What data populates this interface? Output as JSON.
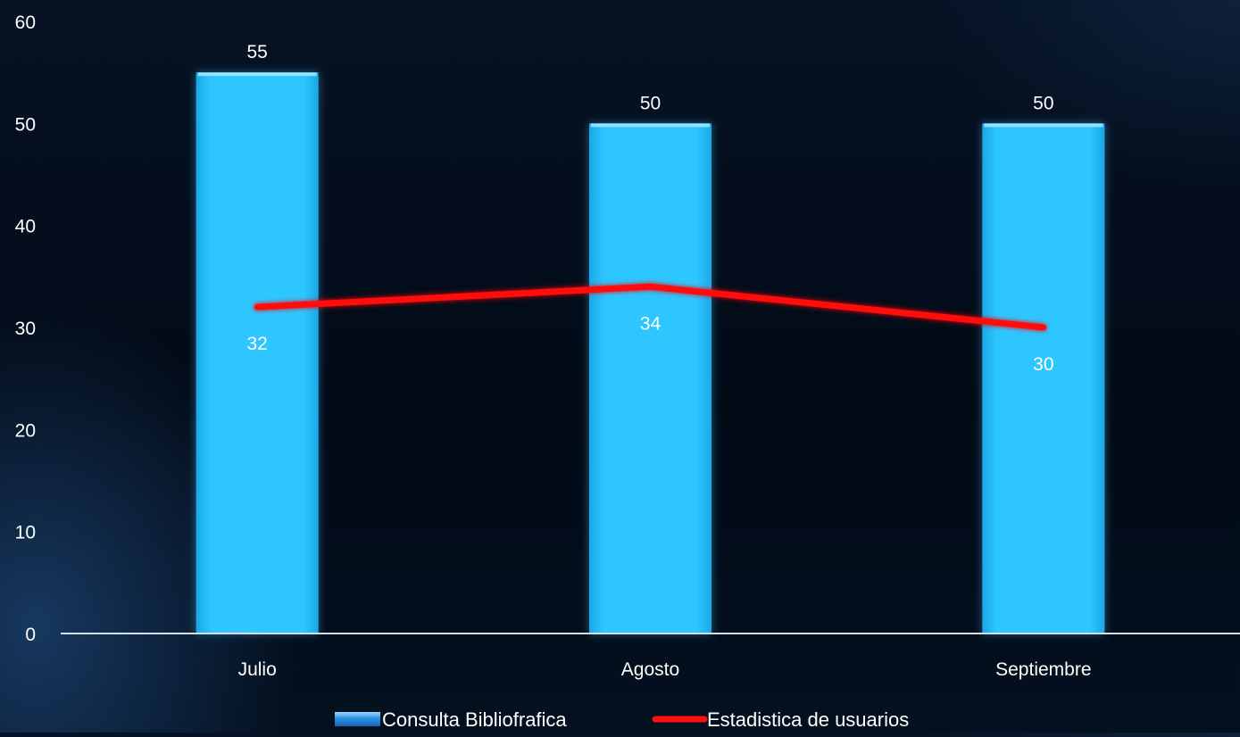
{
  "chart_data": {
    "type": "bar",
    "categories": [
      "Julio",
      "Agosto",
      "Septiembre"
    ],
    "series": [
      {
        "name": "Consulta Bibliofrafica",
        "type": "bar",
        "values": [
          55,
          50,
          50
        ],
        "color": "#29c1fb"
      },
      {
        "name": "Estadistica de usuarios",
        "type": "line",
        "values": [
          32,
          34,
          30
        ],
        "color": "#ff1010"
      }
    ],
    "ylim": [
      0,
      60
    ],
    "yticks": [
      0,
      10,
      20,
      30,
      40,
      50,
      60
    ],
    "grid": false,
    "legend": "bottom"
  }
}
